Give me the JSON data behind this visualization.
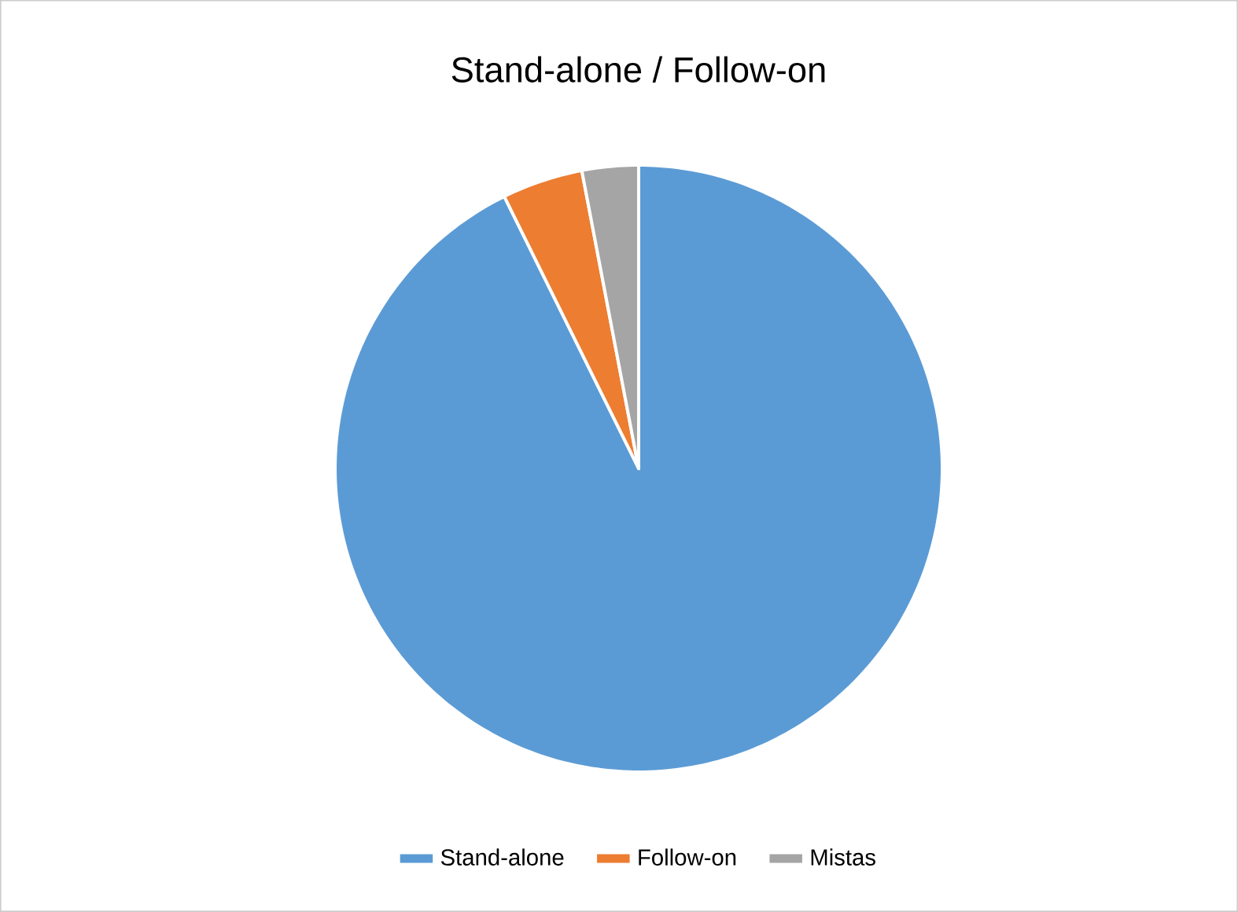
{
  "chart_data": {
    "type": "pie",
    "title": "Stand-alone / Follow-on",
    "categories": [
      "Stand-alone",
      "Follow-on",
      "Mistas"
    ],
    "values": [
      92.7,
      4.3,
      3.0
    ],
    "colors": [
      "#5b9bd5",
      "#ed7d31",
      "#a5a5a5"
    ],
    "legend": "bottom"
  }
}
